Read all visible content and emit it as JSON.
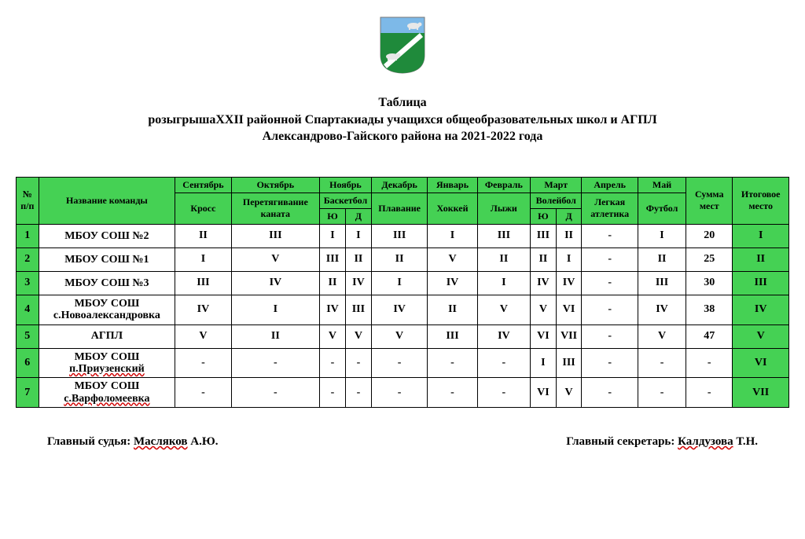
{
  "colors": {
    "header_bg": "#45d154",
    "border": "#000000",
    "page_bg": "#ffffff",
    "spell_wave": "#d00000"
  },
  "emblem": {
    "sky": "#7db9e8",
    "field": "#1f8a3b",
    "band": "#ffffff",
    "animal": "#e8e8e8"
  },
  "title": {
    "l1": "Таблица",
    "l2": "розыгрышаXXII районной Спартакиады учащихся общеобразовательных школ и АГПЛ",
    "l3": "Александрово-Гайского района на 2021-2022 года"
  },
  "head": {
    "num": "№ п/п",
    "team": "Название команды",
    "sum": "Сумма мест",
    "final": "Итоговое место",
    "months": {
      "sep": "Сентябрь",
      "oct": "Октябрь",
      "nov": "Ноябрь",
      "dec": "Декабрь",
      "jan": "Январь",
      "feb": "Февраль",
      "mar": "Март",
      "apr": "Апрель",
      "may": "Май"
    },
    "sports": {
      "sep": "Кросс",
      "oct": "Перетягивание каната",
      "nov": "Баскетбол",
      "dec": "Плавание",
      "jan": "Хоккей",
      "feb": "Лыжи",
      "mar": "Волейбол",
      "apr": "Легкая атлетика",
      "may": "Футбол"
    },
    "sub": {
      "yu": "Ю",
      "d": "Д"
    }
  },
  "rows": [
    {
      "n": "1",
      "name_l1": "МБОУ СОШ №2",
      "name_l2": "",
      "spell_l2": false,
      "c": [
        "II",
        "III",
        "I",
        "I",
        "III",
        "I",
        "III",
        "III",
        "II",
        "-",
        "I",
        "20",
        "I"
      ]
    },
    {
      "n": "2",
      "name_l1": "МБОУ СОШ №1",
      "name_l2": "",
      "spell_l2": false,
      "c": [
        "I",
        "V",
        "III",
        "II",
        "II",
        "V",
        "II",
        "II",
        "I",
        "-",
        "II",
        "25",
        "II"
      ]
    },
    {
      "n": "3",
      "name_l1": "МБОУ СОШ №3",
      "name_l2": "",
      "spell_l2": false,
      "c": [
        "III",
        "IV",
        "II",
        "IV",
        "I",
        "IV",
        "I",
        "IV",
        "IV",
        "-",
        "III",
        "30",
        "III"
      ]
    },
    {
      "n": "4",
      "name_l1": "МБОУ СОШ",
      "name_l2": "с.Новоалександровка",
      "spell_l2": false,
      "c": [
        "IV",
        "I",
        "IV",
        "III",
        "IV",
        "II",
        "V",
        "V",
        "VI",
        "-",
        "IV",
        "38",
        "IV"
      ]
    },
    {
      "n": "5",
      "name_l1": "АГПЛ",
      "name_l2": "",
      "spell_l2": false,
      "c": [
        "V",
        "II",
        "V",
        "V",
        "V",
        "III",
        "IV",
        "VI",
        "VII",
        "-",
        "V",
        "47",
        "V"
      ]
    },
    {
      "n": "6",
      "name_l1": "МБОУ СОШ",
      "name_l2": "п.Приузенский",
      "spell_l2": true,
      "c": [
        "-",
        "-",
        "-",
        "-",
        "-",
        "-",
        "-",
        "I",
        "III",
        "-",
        "-",
        "-",
        "VI"
      ]
    },
    {
      "n": "7",
      "name_l1": "МБОУ СОШ",
      "name_l2": "с.Варфоломеевка",
      "spell_l2": true,
      "c": [
        "-",
        "-",
        "-",
        "-",
        "-",
        "-",
        "-",
        "VI",
        "V",
        "-",
        "-",
        "-",
        "VII"
      ]
    }
  ],
  "footer": {
    "judge_label": "Главный судья: ",
    "judge_name": "Масляков",
    "judge_rest": " А.Ю.",
    "sec_label": "Главный секретарь: ",
    "sec_name": "Калдузова",
    "sec_rest": " Т.Н."
  }
}
